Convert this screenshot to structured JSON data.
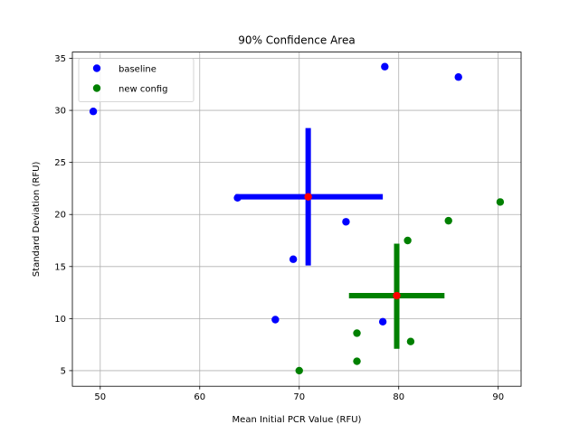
{
  "chart_data": {
    "type": "scatter",
    "title": "90% Confidence Area",
    "xlabel": "Mean Initial PCR Value (RFU)",
    "ylabel": "Standard Deviation (RFU)",
    "xlim": [
      47.2,
      92.3
    ],
    "ylim": [
      3.5,
      35.6
    ],
    "xticks": [
      50,
      60,
      70,
      80,
      90
    ],
    "yticks": [
      5,
      10,
      15,
      20,
      25,
      30,
      35
    ],
    "grid": true,
    "legend_position": "upper-left",
    "series": [
      {
        "name": "baseline",
        "color": "#0000ff",
        "points": [
          {
            "x": 49.3,
            "y": 29.9
          },
          {
            "x": 78.6,
            "y": 34.2
          },
          {
            "x": 86.0,
            "y": 33.2
          },
          {
            "x": 63.8,
            "y": 21.6
          },
          {
            "x": 74.7,
            "y": 19.3
          },
          {
            "x": 69.4,
            "y": 15.7
          },
          {
            "x": 67.6,
            "y": 9.9
          },
          {
            "x": 78.4,
            "y": 9.7
          }
        ],
        "confidence": {
          "center": {
            "x": 70.9,
            "y": 21.7
          },
          "x_range": [
            63.6,
            78.4
          ],
          "y_range": [
            15.1,
            28.3
          ]
        }
      },
      {
        "name": "new config",
        "color": "#008000",
        "points": [
          {
            "x": 90.2,
            "y": 21.2
          },
          {
            "x": 85.0,
            "y": 19.4
          },
          {
            "x": 80.9,
            "y": 17.5
          },
          {
            "x": 75.8,
            "y": 8.6
          },
          {
            "x": 81.2,
            "y": 7.8
          },
          {
            "x": 75.8,
            "y": 5.9
          },
          {
            "x": 70.0,
            "y": 5.0
          }
        ],
        "confidence": {
          "center": {
            "x": 79.8,
            "y": 12.2
          },
          "x_range": [
            75.0,
            84.6
          ],
          "y_range": [
            7.1,
            17.2
          ]
        }
      }
    ],
    "center_color": "#ff0000"
  }
}
